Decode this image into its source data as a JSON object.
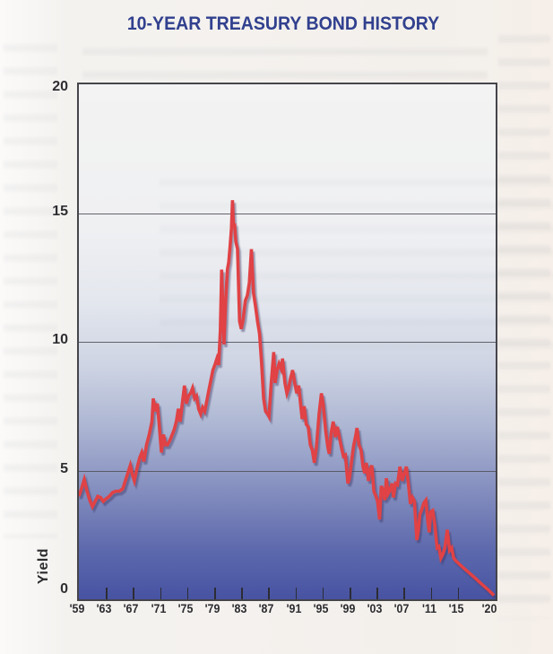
{
  "page": {
    "title": "10-YEAR TREASURY BOND HISTORY"
  },
  "colors": {
    "title_navy": "#31408e",
    "line_red": "#e04245",
    "line_shadow": "rgba(58,52,98,0.45)",
    "axis_text": "#2c2c30",
    "plot_top": "#f3f3f3",
    "plot_bottom": "#4753a2",
    "grid": "#53545c"
  },
  "chart_data": {
    "type": "line",
    "title": "10-YEAR TREASURY BOND HISTORY",
    "xlabel": "",
    "ylabel": "Yield",
    "xlim": [
      1959,
      2020.6
    ],
    "ylim": [
      0,
      20
    ],
    "grid": "horizontal gridlines at 5, 10, 15; plot background fades white (top) to deep blue (bottom)",
    "legend": "none",
    "gridline_values": [
      15,
      10,
      5
    ],
    "yticks": [
      {
        "label": "20",
        "value": 20
      },
      {
        "label": "15",
        "value": 15
      },
      {
        "label": "10",
        "value": 10
      },
      {
        "label": "5",
        "value": 5
      },
      {
        "label": "0",
        "value": 0
      }
    ],
    "xticks": [
      {
        "label": "'59",
        "year": 1959
      },
      {
        "label": "'63",
        "year": 1963
      },
      {
        "label": "'67",
        "year": 1967
      },
      {
        "label": "'71",
        "year": 1971
      },
      {
        "label": "'75",
        "year": 1975
      },
      {
        "label": "'79",
        "year": 1979
      },
      {
        "label": "'83",
        "year": 1983
      },
      {
        "label": "'87",
        "year": 1987
      },
      {
        "label": "'91",
        "year": 1991
      },
      {
        "label": "'95",
        "year": 1995
      },
      {
        "label": "'99",
        "year": 1999
      },
      {
        "label": "'03",
        "year": 2003
      },
      {
        "label": "'07",
        "year": 2007
      },
      {
        "label": "'11",
        "year": 2011
      },
      {
        "label": "'15",
        "year": 2015
      },
      {
        "label": "'20",
        "year": 2020
      }
    ],
    "tick_mark_years": [
      1963,
      1967,
      1971,
      1975,
      1979,
      1983,
      1987,
      1991,
      1995,
      1999,
      2003,
      2007,
      2011,
      2015
    ],
    "series": [
      {
        "name": "10-Year Treasury Bond Yield (%)",
        "points": [
          [
            1959.0,
            4.0
          ],
          [
            1959.4,
            4.3
          ],
          [
            1959.8,
            4.65
          ],
          [
            1960.2,
            4.2
          ],
          [
            1960.6,
            3.85
          ],
          [
            1961.0,
            3.6
          ],
          [
            1961.4,
            3.8
          ],
          [
            1961.8,
            4.0
          ],
          [
            1962.2,
            3.95
          ],
          [
            1962.6,
            3.8
          ],
          [
            1963.0,
            3.9
          ],
          [
            1963.5,
            4.0
          ],
          [
            1964.0,
            4.15
          ],
          [
            1964.5,
            4.2
          ],
          [
            1965.0,
            4.2
          ],
          [
            1965.5,
            4.3
          ],
          [
            1966.0,
            4.7
          ],
          [
            1966.6,
            5.2
          ],
          [
            1966.9,
            4.85
          ],
          [
            1967.2,
            4.6
          ],
          [
            1967.6,
            5.1
          ],
          [
            1968.0,
            5.5
          ],
          [
            1968.3,
            5.7
          ],
          [
            1968.6,
            5.35
          ],
          [
            1969.0,
            6.0
          ],
          [
            1969.4,
            6.4
          ],
          [
            1969.8,
            6.9
          ],
          [
            1970.0,
            7.8
          ],
          [
            1970.3,
            7.3
          ],
          [
            1970.6,
            7.6
          ],
          [
            1970.9,
            6.7
          ],
          [
            1971.2,
            5.7
          ],
          [
            1971.5,
            6.4
          ],
          [
            1971.8,
            6.0
          ],
          [
            1972.1,
            6.0
          ],
          [
            1972.5,
            6.2
          ],
          [
            1972.8,
            6.4
          ],
          [
            1973.1,
            6.6
          ],
          [
            1973.4,
            6.9
          ],
          [
            1973.7,
            7.4
          ],
          [
            1973.95,
            6.9
          ],
          [
            1974.2,
            7.4
          ],
          [
            1974.6,
            8.3
          ],
          [
            1974.9,
            7.6
          ],
          [
            1975.2,
            7.9
          ],
          [
            1975.5,
            8.0
          ],
          [
            1975.8,
            8.2
          ],
          [
            1976.1,
            7.8
          ],
          [
            1976.4,
            7.9
          ],
          [
            1976.7,
            7.4
          ],
          [
            1977.0,
            7.2
          ],
          [
            1977.3,
            7.45
          ],
          [
            1977.6,
            7.3
          ],
          [
            1977.9,
            7.7
          ],
          [
            1978.2,
            8.1
          ],
          [
            1978.5,
            8.5
          ],
          [
            1978.8,
            8.9
          ],
          [
            1979.1,
            9.1
          ],
          [
            1979.4,
            9.35
          ],
          [
            1979.65,
            9.1
          ],
          [
            1979.9,
            10.4
          ],
          [
            1980.1,
            12.8
          ],
          [
            1980.45,
            9.9
          ],
          [
            1980.7,
            11.6
          ],
          [
            1980.95,
            12.8
          ],
          [
            1981.15,
            13.1
          ],
          [
            1981.35,
            13.7
          ],
          [
            1981.55,
            14.4
          ],
          [
            1981.7,
            15.5
          ],
          [
            1981.85,
            14.5
          ],
          [
            1982.0,
            14.6
          ],
          [
            1982.2,
            13.9
          ],
          [
            1982.45,
            13.6
          ],
          [
            1982.75,
            10.8
          ],
          [
            1983.0,
            10.5
          ],
          [
            1983.3,
            10.9
          ],
          [
            1983.6,
            11.6
          ],
          [
            1983.9,
            11.8
          ],
          [
            1984.2,
            12.3
          ],
          [
            1984.5,
            13.6
          ],
          [
            1984.8,
            11.9
          ],
          [
            1985.1,
            11.4
          ],
          [
            1985.4,
            10.8
          ],
          [
            1985.7,
            10.3
          ],
          [
            1986.0,
            9.2
          ],
          [
            1986.3,
            7.8
          ],
          [
            1986.6,
            7.3
          ],
          [
            1986.9,
            7.2
          ],
          [
            1987.1,
            7.1
          ],
          [
            1987.4,
            8.3
          ],
          [
            1987.8,
            9.6
          ],
          [
            1988.0,
            8.4
          ],
          [
            1988.3,
            8.9
          ],
          [
            1988.6,
            9.15
          ],
          [
            1988.9,
            8.95
          ],
          [
            1989.1,
            9.35
          ],
          [
            1989.45,
            8.4
          ],
          [
            1989.75,
            8.0
          ],
          [
            1990.0,
            8.2
          ],
          [
            1990.3,
            8.6
          ],
          [
            1990.6,
            8.9
          ],
          [
            1990.9,
            8.4
          ],
          [
            1991.2,
            8.0
          ],
          [
            1991.5,
            8.3
          ],
          [
            1991.8,
            7.5
          ],
          [
            1992.0,
            7.0
          ],
          [
            1992.3,
            7.5
          ],
          [
            1992.6,
            6.8
          ],
          [
            1992.9,
            6.7
          ],
          [
            1993.2,
            6.0
          ],
          [
            1993.5,
            5.8
          ],
          [
            1993.8,
            5.3
          ],
          [
            1994.1,
            5.9
          ],
          [
            1994.5,
            7.2
          ],
          [
            1994.85,
            8.0
          ],
          [
            1995.1,
            7.6
          ],
          [
            1995.5,
            6.5
          ],
          [
            1995.8,
            5.9
          ],
          [
            1996.0,
            5.65
          ],
          [
            1996.3,
            6.5
          ],
          [
            1996.6,
            6.9
          ],
          [
            1996.9,
            6.3
          ],
          [
            1997.2,
            6.7
          ],
          [
            1997.5,
            6.3
          ],
          [
            1997.8,
            5.9
          ],
          [
            1998.1,
            5.55
          ],
          [
            1998.4,
            5.6
          ],
          [
            1998.75,
            4.5
          ],
          [
            1999.0,
            4.7
          ],
          [
            1999.3,
            5.35
          ],
          [
            1999.6,
            5.95
          ],
          [
            1999.95,
            6.4
          ],
          [
            2000.1,
            6.65
          ],
          [
            2000.4,
            6.0
          ],
          [
            2000.7,
            5.8
          ],
          [
            2001.0,
            5.15
          ],
          [
            2001.25,
            4.9
          ],
          [
            2001.5,
            5.3
          ],
          [
            2001.8,
            4.6
          ],
          [
            2002.0,
            5.0
          ],
          [
            2002.3,
            5.2
          ],
          [
            2002.6,
            4.2
          ],
          [
            2002.9,
            4.0
          ],
          [
            2003.15,
            3.8
          ],
          [
            2003.45,
            3.1
          ],
          [
            2003.7,
            4.4
          ],
          [
            2003.95,
            4.25
          ],
          [
            2004.2,
            3.85
          ],
          [
            2004.45,
            4.7
          ],
          [
            2004.7,
            4.1
          ],
          [
            2005.0,
            4.25
          ],
          [
            2005.3,
            4.5
          ],
          [
            2005.5,
            3.95
          ],
          [
            2005.8,
            4.5
          ],
          [
            2006.1,
            4.45
          ],
          [
            2006.45,
            5.15
          ],
          [
            2006.8,
            4.6
          ],
          [
            2007.0,
            4.8
          ],
          [
            2007.4,
            5.15
          ],
          [
            2007.7,
            4.5
          ],
          [
            2008.0,
            3.7
          ],
          [
            2008.3,
            3.95
          ],
          [
            2008.6,
            3.8
          ],
          [
            2008.95,
            2.3
          ],
          [
            2009.15,
            2.6
          ],
          [
            2009.4,
            3.3
          ],
          [
            2009.7,
            3.5
          ],
          [
            2010.0,
            3.75
          ],
          [
            2010.3,
            3.85
          ],
          [
            2010.6,
            2.95
          ],
          [
            2010.8,
            2.6
          ],
          [
            2011.0,
            3.4
          ],
          [
            2011.3,
            3.45
          ],
          [
            2011.6,
            2.9
          ],
          [
            2011.95,
            2.0
          ],
          [
            2012.2,
            2.05
          ],
          [
            2012.5,
            1.6
          ],
          [
            2012.8,
            1.75
          ],
          [
            2013.1,
            2.0
          ],
          [
            2013.45,
            2.7
          ],
          [
            2013.8,
            1.9
          ],
          [
            2014.1,
            2.0
          ],
          [
            2014.4,
            1.6
          ],
          [
            2014.7,
            1.5
          ],
          [
            2015.5,
            1.3
          ],
          [
            2016.5,
            1.07
          ],
          [
            2017.5,
            0.84
          ],
          [
            2018.5,
            0.6
          ],
          [
            2019.5,
            0.37
          ],
          [
            2020.35,
            0.15
          ]
        ]
      }
    ]
  }
}
